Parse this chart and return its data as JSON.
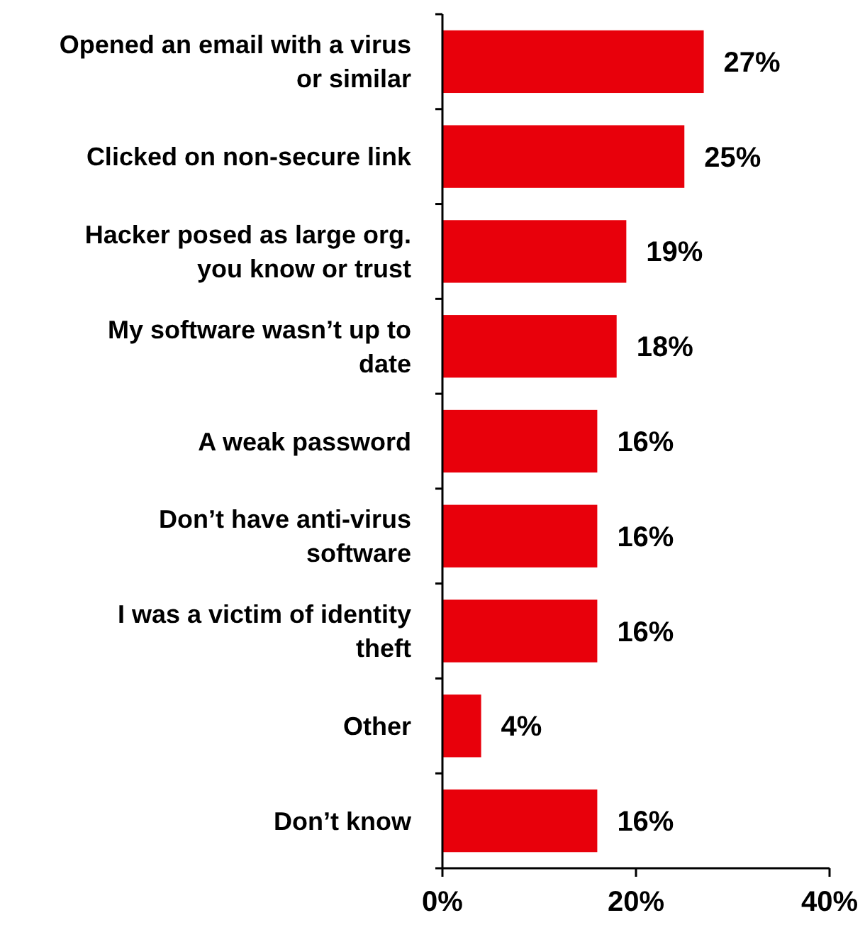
{
  "chart_data": {
    "type": "bar",
    "orientation": "horizontal",
    "categories": [
      "Opened an email with a virus or similar",
      "Clicked on non-secure link",
      "Hacker posed as large org. you know or trust",
      "My software wasn’t up to date",
      "A weak password",
      "Don’t have anti-virus software",
      "I was a victim of identity theft",
      "Other",
      "Don’t know"
    ],
    "values": [
      27,
      25,
      19,
      18,
      16,
      16,
      16,
      4,
      16
    ],
    "color": "#e8000b",
    "xlim": [
      0,
      40
    ],
    "xticks": [
      {
        "value": 0,
        "label": "0%"
      },
      {
        "value": 20,
        "label": "20%"
      },
      {
        "value": 40,
        "label": "40%"
      }
    ],
    "value_labels": [
      "27%",
      "25%",
      "19%",
      "18%",
      "16%",
      "16%",
      "16%",
      "4%",
      "16%"
    ],
    "grid": false
  }
}
